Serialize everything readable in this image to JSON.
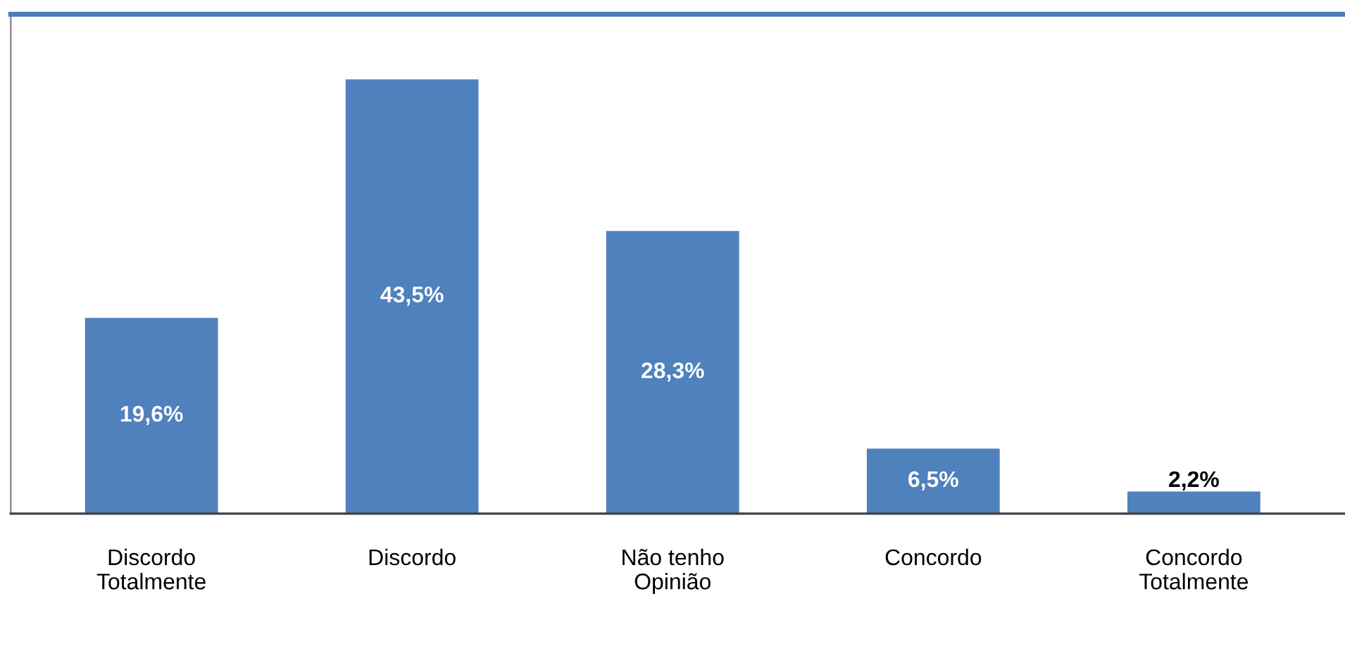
{
  "chart_data": {
    "type": "bar",
    "categories": [
      "Discordo\nTotalmente",
      "Discordo",
      "Não tenho\nOpinião",
      "Concordo",
      "Concordo\nTotalmente"
    ],
    "values": [
      19.6,
      43.5,
      28.3,
      6.5,
      2.2
    ],
    "value_labels": [
      "19,6%",
      "43,5%",
      "28,3%",
      "6,5%",
      "2,2%"
    ],
    "color": "#4f81bd",
    "grid": false,
    "legend": false
  }
}
